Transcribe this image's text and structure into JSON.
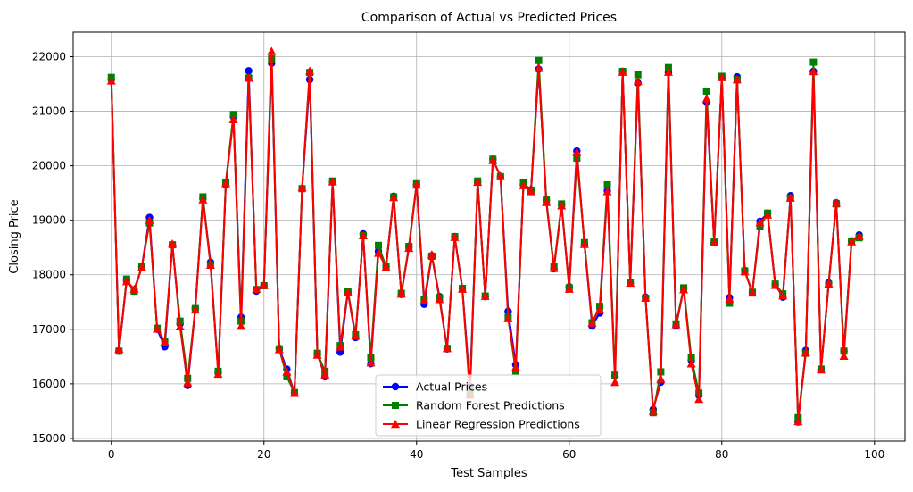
{
  "chart_data": {
    "type": "line",
    "title": "Comparison of Actual vs Predicted Prices",
    "xlabel": "Test Samples",
    "ylabel": "Closing Price",
    "xlim": [
      -5,
      104
    ],
    "ylim": [
      14950,
      22450
    ],
    "xticks": [
      0,
      20,
      40,
      60,
      80,
      100
    ],
    "yticks": [
      15000,
      16000,
      17000,
      18000,
      19000,
      20000,
      21000,
      22000
    ],
    "grid": true,
    "legend_position": "lower center",
    "series": [
      {
        "name": "Actual Prices",
        "color": "#0000ff",
        "marker": "circle",
        "values": [
          21580,
          16600,
          17900,
          17700,
          18150,
          19050,
          17000,
          16680,
          18550,
          17100,
          15970,
          17380,
          19400,
          18230,
          16200,
          19650,
          20900,
          17220,
          21740,
          17700,
          17800,
          21880,
          16650,
          16270,
          15830,
          19580,
          21580,
          16550,
          16130,
          19700,
          16580,
          17680,
          16850,
          18750,
          16370,
          18430,
          18150,
          19440,
          17640,
          18520,
          19660,
          17460,
          18350,
          17600,
          16640,
          18700,
          17750,
          15950,
          19700,
          17600,
          20120,
          19800,
          17330,
          16350,
          19650,
          19560,
          21770,
          19370,
          18110,
          19280,
          17780,
          20270,
          18560,
          17060,
          17300,
          19540,
          16140,
          21730,
          17850,
          21520,
          17590,
          15530,
          16030,
          21710,
          17060,
          17750,
          16430,
          15790,
          21160,
          18590,
          21620,
          17580,
          21630,
          18080,
          17670,
          18980,
          19130,
          17820,
          17590,
          19450,
          15300,
          16610,
          21730,
          16260,
          17850,
          19320,
          16600,
          18620,
          18730
        ]
      },
      {
        "name": "Random Forest Predictions",
        "color": "#008000",
        "marker": "square",
        "values": [
          21620,
          16600,
          17920,
          17700,
          18150,
          18950,
          17020,
          16770,
          18550,
          17150,
          16100,
          17380,
          19430,
          18180,
          16230,
          19700,
          20940,
          17150,
          21610,
          17730,
          17800,
          21960,
          16640,
          16130,
          15840,
          19580,
          21710,
          16560,
          16230,
          19720,
          16700,
          17700,
          16900,
          18720,
          16480,
          18540,
          18150,
          19430,
          17660,
          18520,
          19670,
          17540,
          18340,
          17580,
          16650,
          18700,
          17750,
          15850,
          19720,
          17610,
          20120,
          19800,
          17220,
          16220,
          19690,
          19550,
          21930,
          19370,
          18150,
          19300,
          17760,
          20140,
          18590,
          17120,
          17420,
          19650,
          16160,
          21730,
          17860,
          21670,
          17570,
          15470,
          16220,
          21800,
          17100,
          17760,
          16480,
          15830,
          21370,
          18600,
          21640,
          17480,
          21580,
          18070,
          17680,
          18880,
          19130,
          17830,
          17650,
          19410,
          15380,
          16560,
          21900,
          16270,
          17820,
          19300,
          16600,
          18620,
          18680
        ]
      },
      {
        "name": "Linear Regression Predictions",
        "color": "#ff0000",
        "marker": "triangle",
        "values": [
          21560,
          16640,
          17880,
          17740,
          18140,
          19000,
          17010,
          16770,
          18570,
          17050,
          16020,
          17360,
          19380,
          18180,
          16180,
          19680,
          20850,
          17060,
          21610,
          17740,
          17810,
          22100,
          16630,
          16220,
          15830,
          19600,
          21740,
          16530,
          16170,
          19710,
          16680,
          17680,
          16880,
          18720,
          16390,
          18400,
          18140,
          19420,
          17650,
          18490,
          19650,
          17530,
          18370,
          17550,
          16650,
          18690,
          17740,
          15800,
          19700,
          17610,
          20100,
          19810,
          17200,
          16300,
          19640,
          19530,
          21790,
          19330,
          18120,
          19270,
          17740,
          20250,
          18560,
          17120,
          17370,
          19530,
          16030,
          21720,
          17850,
          21550,
          17580,
          15500,
          16090,
          21720,
          17090,
          17730,
          16370,
          15720,
          21230,
          18590,
          21620,
          17560,
          21580,
          18060,
          17670,
          18960,
          19100,
          17810,
          17620,
          19410,
          15310,
          16570,
          21730,
          16260,
          17840,
          19320,
          16510,
          18610,
          18710
        ]
      }
    ]
  }
}
